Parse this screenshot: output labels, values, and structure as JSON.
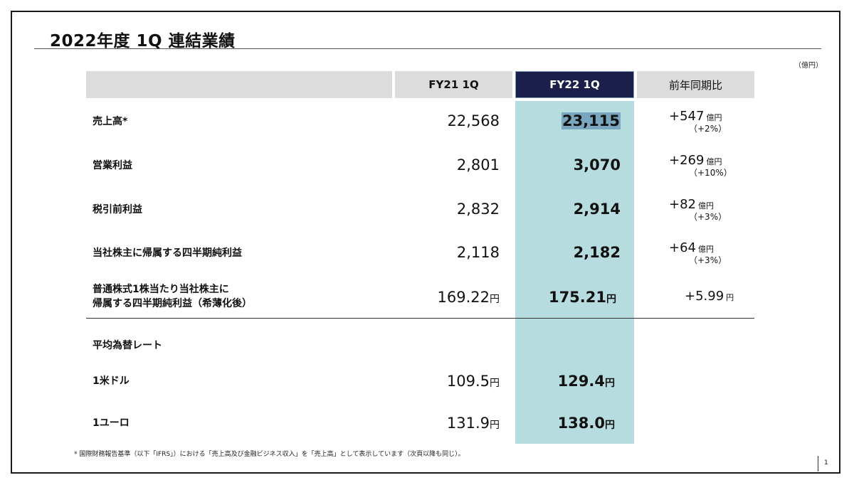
{
  "title": "2022年度 1Q 連結業績",
  "unit_note": "（億円）",
  "columns": {
    "fy21": "FY21 1Q",
    "fy22": "FY22 1Q",
    "yoy": "前年同期比"
  },
  "rows": [
    {
      "label": "売上高*",
      "fy21": "22,568",
      "fy22": "23,115",
      "yoy_value": "+547",
      "yoy_unit": "億円",
      "yoy_pct": "（+2%）"
    },
    {
      "label": "営業利益",
      "fy21": "2,801",
      "fy22": "3,070",
      "yoy_value": "+269",
      "yoy_unit": "億円",
      "yoy_pct": "（+10%）"
    },
    {
      "label": "税引前利益",
      "fy21": "2,832",
      "fy22": "2,914",
      "yoy_value": "+82",
      "yoy_unit": "億円",
      "yoy_pct": "（+3%）"
    },
    {
      "label": "当社株主に帰属する四半期純利益",
      "fy21": "2,118",
      "fy22": "2,182",
      "yoy_value": "+64",
      "yoy_unit": "億円",
      "yoy_pct": "（+3%）"
    },
    {
      "label_line1": "普通株式1株当たり当社株主に",
      "label_line2": "帰属する四半期純利益（希薄化後）",
      "fy21": "169.22",
      "fy22": "175.21",
      "yen": "円",
      "yoy_value": "+5.99",
      "yoy_unit": "円"
    }
  ],
  "fx": {
    "heading": "平均為替レート",
    "rows": [
      {
        "label": "1米ドル",
        "fy21": "109.5",
        "fy22": "129.4",
        "yen": "円"
      },
      {
        "label": "1ユーロ",
        "fy21": "131.9",
        "fy22": "138.0",
        "yen": "円"
      }
    ]
  },
  "footnote": "* 国際財務報告基準（以下「IFRS」）における「売上高及び金融ビジネス収入」を「売上高」として表示しています（次頁以降も同じ）。",
  "page_number": "1"
}
